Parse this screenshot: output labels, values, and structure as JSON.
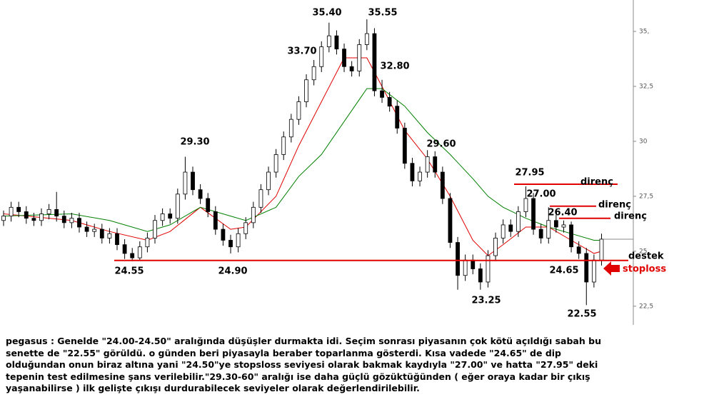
{
  "chart_data": {
    "type": "candlestick",
    "up_color": "#ffffff",
    "down_color": "#000000",
    "xlim": [
      -0.47,
      83.2
    ],
    "ylim": [
      21.65,
      36.43
    ],
    "yticks": [
      {
        "value": 35,
        "label": "35,"
      },
      {
        "value": 32.5,
        "label": "32,5"
      },
      30,
      {
        "value": 27.5,
        "label": "27,5"
      },
      25,
      {
        "value": 22.5,
        "label": "22,5"
      }
    ],
    "open": [
      26.4,
      26.6,
      27.0,
      26.8,
      26.5,
      26.4,
      26.7,
      26.9,
      26.6,
      26.3,
      26.5,
      26.1,
      25.9,
      26.0,
      25.6,
      25.8,
      25.3,
      24.9,
      24.7,
      25.2,
      25.6,
      26.4,
      26.7,
      26.5,
      27.6,
      28.6,
      27.8,
      27.4,
      26.8,
      26.0,
      25.5,
      25.2,
      25.8,
      26.3,
      27.0,
      27.8,
      28.6,
      29.4,
      30.2,
      31.0,
      31.8,
      32.8,
      33.4,
      34.3,
      34.8,
      34.2,
      33.4,
      33.2,
      34.4,
      34.9,
      32.3,
      32.0,
      31.6,
      30.6,
      29.0,
      28.2,
      28.6,
      29.3,
      28.6,
      27.4,
      25.4,
      23.9,
      24.6,
      24.2,
      23.6,
      24.8,
      25.6,
      26.2,
      25.9,
      26.8,
      27.4,
      26.0,
      25.6,
      26.4,
      26.1,
      26.2,
      25.2,
      24.9,
      23.6,
      24.6
    ],
    "high": [
      26.85,
      27.25,
      27.25,
      27.05,
      26.75,
      26.95,
      27.15,
      27.7,
      26.85,
      26.75,
      26.75,
      26.35,
      26.25,
      26.25,
      26.05,
      26.05,
      25.55,
      25.15,
      25.45,
      25.85,
      26.65,
      26.95,
      26.95,
      27.85,
      29.3,
      28.85,
      28.05,
      27.65,
      27.05,
      26.25,
      25.75,
      26.05,
      26.55,
      27.25,
      28.05,
      28.85,
      29.65,
      30.45,
      31.25,
      32.05,
      33.05,
      33.7,
      34.55,
      35.4,
      35.05,
      34.45,
      33.65,
      34.65,
      35.55,
      35.15,
      32.8,
      32.25,
      31.85,
      30.85,
      29.25,
      28.85,
      29.6,
      29.55,
      28.85,
      27.65,
      25.65,
      24.85,
      24.85,
      24.45,
      25.05,
      25.85,
      26.45,
      26.45,
      27.05,
      27.95,
      27.65,
      26.25,
      27.0,
      26.65,
      26.4,
      26.35,
      25.45,
      25.15,
      24.85,
      25.8
    ],
    "low": [
      26.15,
      26.35,
      26.55,
      26.25,
      26.15,
      26.15,
      26.45,
      26.35,
      26.05,
      26.05,
      25.85,
      25.65,
      25.65,
      25.35,
      25.35,
      25.05,
      24.65,
      24.55,
      24.6,
      24.95,
      25.35,
      26.15,
      26.25,
      26.25,
      27.35,
      27.55,
      27.15,
      26.55,
      25.75,
      25.25,
      24.9,
      24.95,
      25.55,
      26.05,
      26.75,
      27.55,
      28.35,
      29.15,
      29.95,
      30.75,
      31.55,
      32.55,
      33.15,
      34.05,
      33.95,
      33.15,
      32.95,
      32.95,
      34.15,
      32.05,
      31.75,
      31.35,
      30.35,
      28.75,
      27.95,
      27.95,
      28.35,
      28.35,
      27.15,
      25.15,
      23.25,
      23.65,
      23.95,
      23.25,
      23.35,
      24.55,
      25.35,
      25.65,
      25.65,
      26.55,
      25.75,
      25.35,
      25.35,
      25.85,
      25.85,
      24.95,
      24.65,
      22.55,
      23.35,
      24.35
    ],
    "close": [
      26.6,
      27.0,
      26.8,
      26.5,
      26.4,
      26.7,
      26.9,
      26.6,
      26.3,
      26.5,
      26.1,
      25.9,
      26.0,
      25.6,
      25.8,
      25.3,
      24.9,
      24.7,
      25.2,
      25.6,
      26.4,
      26.7,
      26.5,
      27.6,
      28.6,
      27.8,
      27.4,
      26.8,
      26.0,
      25.5,
      25.2,
      25.8,
      26.3,
      27.0,
      27.8,
      28.6,
      29.4,
      30.2,
      31.0,
      31.8,
      32.8,
      33.4,
      34.3,
      34.8,
      34.2,
      33.4,
      33.2,
      34.4,
      34.9,
      32.3,
      32.0,
      31.6,
      30.6,
      29.0,
      28.2,
      28.6,
      29.3,
      28.6,
      27.4,
      25.4,
      23.9,
      24.6,
      24.2,
      23.6,
      24.8,
      25.6,
      26.2,
      25.9,
      26.8,
      27.4,
      26.0,
      25.6,
      26.4,
      26.1,
      26.2,
      25.2,
      24.9,
      23.6,
      24.6,
      25.55
    ],
    "lines": [
      {
        "color": "#e00000",
        "x": [
          0,
          9,
          14,
          19,
          22,
          26,
          30,
          32,
          36,
          39,
          42,
          45,
          48,
          50,
          53,
          56,
          59,
          62,
          64,
          66,
          69,
          72,
          75,
          78,
          79
        ],
        "values": [
          26.7,
          26.4,
          25.9,
          25.5,
          25.9,
          27.0,
          26.0,
          26.1,
          27.5,
          29.8,
          31.8,
          33.8,
          33.8,
          32.5,
          30.5,
          29.2,
          27.5,
          25.5,
          24.8,
          25.3,
          26.1,
          26.1,
          25.5,
          24.9,
          25.0
        ]
      },
      {
        "color": "#008000",
        "x": [
          0,
          9,
          14,
          19,
          22,
          26,
          30,
          32,
          36,
          39,
          42,
          45,
          48,
          50,
          53,
          56,
          59,
          62,
          64,
          66,
          69,
          72,
          75,
          78,
          79
        ],
        "values": [
          26.6,
          26.7,
          26.4,
          25.9,
          26.2,
          27.0,
          26.6,
          26.4,
          27.0,
          28.4,
          29.4,
          30.9,
          32.4,
          32.4,
          31.6,
          30.4,
          29.4,
          28.3,
          27.5,
          27.0,
          26.5,
          26.1,
          25.8,
          25.5,
          25.5
        ]
      }
    ],
    "levels": [
      {
        "value": 28.05,
        "label": "direnç",
        "color": "#e00000"
      },
      {
        "value": 27.05,
        "label": "direnç",
        "color": "#e00000"
      },
      {
        "value": 26.5,
        "label": "direnç",
        "color": "#e00000"
      },
      {
        "value": 24.58,
        "label": "destek",
        "color": "#e00000"
      },
      {
        "value": 25.55,
        "color": "#888888"
      }
    ],
    "stoploss_label": "stoploss",
    "annotations": [
      "35.40",
      "35.55",
      "33.70",
      "32.80",
      "29.30",
      "29.60",
      "27.95",
      "27.00",
      "26.40",
      "24.55",
      "24.90",
      "24.65",
      "23.25",
      "22.55"
    ]
  },
  "caption": [
    "pegasus : Genelde \"24.00-24.50\" aralığında düşüşler durmakta idi. Seçim sonrası piyasanın çok kötü açıldığı sabah bu",
    "senette de \"22.55\" görüldü. o günden beri piyasayla beraber toparlanma gösterdi. Kısa vadede \"24.65\" de dip",
    "olduğundan onun biraz altına yani \"24.50\"ye stopsloss seviyesi olarak bakmak kaydıyla \"27.00\" ve hatta \"27.95\" deki",
    "tepenin test edilmesine şans verilebilir.\"29.30-60\" aralığı ise daha güçlü gözüktüğünden ( eğer oraya kadar bir çıkış",
    "yaşanabilirse ) ilk gelişte çıkışı durdurabilecek seviyeler olarak değerlendirilebilir."
  ]
}
